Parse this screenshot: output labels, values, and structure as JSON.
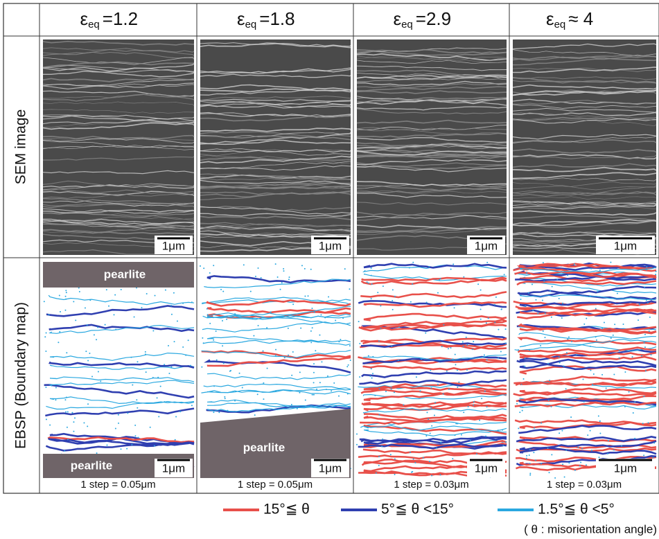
{
  "columns": [
    {
      "symbol": "ε",
      "subscript": "eq",
      "value": "=1.2",
      "step": "1 step = 0.05μm"
    },
    {
      "symbol": "ε",
      "subscript": "eq",
      "value": "=1.8",
      "step": "1 step = 0.05μm"
    },
    {
      "symbol": "ε",
      "subscript": "eq",
      "value": "=2.9",
      "step": "1 step = 0.03μm"
    },
    {
      "symbol": "ε",
      "subscript": "eq",
      "value": "≈ 4",
      "step": "1 step = 0.03μm"
    }
  ],
  "rows": [
    "SEM image",
    "EBSP (Boundary map)"
  ],
  "scale_bar": "1μm",
  "pearlite_label": "pearlite",
  "legend": {
    "items": [
      {
        "label": "15°≦ θ",
        "color": "#e8504a"
      },
      {
        "label": "5°≦ θ <15°",
        "color": "#2f3fb0"
      },
      {
        "label": "1.5°≦ θ <5°",
        "color": "#2aa8e0"
      }
    ],
    "note": "( θ : misorientation angle)"
  }
}
